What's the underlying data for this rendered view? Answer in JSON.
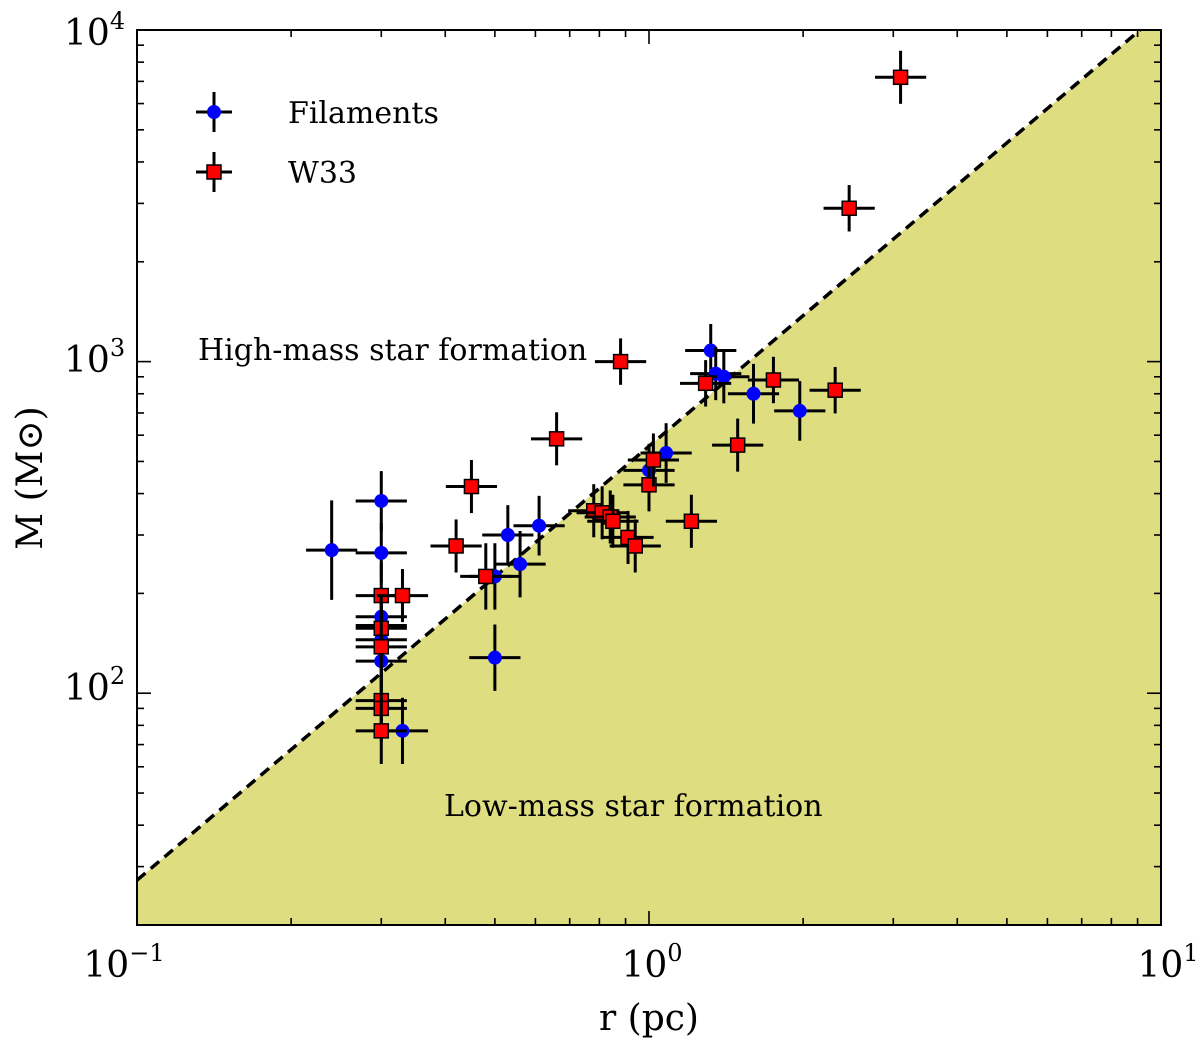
{
  "chart_data": {
    "type": "scatter",
    "xscale": "log",
    "yscale": "log",
    "xlim": [
      0.1,
      10
    ],
    "ylim": [
      20,
      10000
    ],
    "xlabel": "r (pc)",
    "ylabel": "M (M⊙)",
    "x_ticks": [
      {
        "value": 0.1,
        "base": "10",
        "exp": "−1"
      },
      {
        "value": 1,
        "base": "10",
        "exp": "0"
      },
      {
        "value": 10,
        "base": "10",
        "exp": "1"
      }
    ],
    "y_ticks": [
      {
        "value": 100,
        "base": "10",
        "exp": "2"
      },
      {
        "value": 1000,
        "base": "10",
        "exp": "3"
      },
      {
        "value": 10000,
        "base": "10",
        "exp": "4"
      }
    ],
    "threshold": {
      "style": "dashed",
      "color": "#000000",
      "fill_color": "#dedd7f",
      "points": [
        [
          0.1,
          27.3
        ],
        [
          9.1,
          10000
        ]
      ]
    },
    "annotations": {
      "upper": "High-mass star formation",
      "lower": "Low-mass star formation"
    },
    "legend_position": "top-left",
    "series": [
      {
        "name": "Filaments",
        "marker": "circle",
        "color": "#0000ff",
        "points": [
          {
            "x": 0.24,
            "y": 270,
            "yerr": 0.15
          },
          {
            "x": 0.3,
            "y": 380,
            "yerr": 0.09
          },
          {
            "x": 0.3,
            "y": 265,
            "yerr": 0.09
          },
          {
            "x": 0.3,
            "y": 170,
            "yerr": 0.09
          },
          {
            "x": 0.3,
            "y": 160,
            "yerr": 0.09
          },
          {
            "x": 0.3,
            "y": 145,
            "yerr": 0.09
          },
          {
            "x": 0.3,
            "y": 125,
            "yerr": 0.09
          },
          {
            "x": 0.33,
            "y": 77,
            "yerr": 0.1
          },
          {
            "x": 0.5,
            "y": 225,
            "yerr": 0.1
          },
          {
            "x": 0.5,
            "y": 128,
            "yerr": 0.1
          },
          {
            "x": 0.53,
            "y": 300,
            "yerr": 0.09
          },
          {
            "x": 0.56,
            "y": 245,
            "yerr": 0.1
          },
          {
            "x": 0.61,
            "y": 320,
            "yerr": 0.09
          },
          {
            "x": 1.0,
            "y": 470,
            "yerr": 0.08
          },
          {
            "x": 1.08,
            "y": 530,
            "yerr": 0.09
          },
          {
            "x": 1.32,
            "y": 1080,
            "yerr": 0.08
          },
          {
            "x": 1.35,
            "y": 920,
            "yerr": 0.08
          },
          {
            "x": 1.4,
            "y": 900,
            "yerr": 0.08
          },
          {
            "x": 1.6,
            "y": 800,
            "yerr": 0.09
          },
          {
            "x": 1.97,
            "y": 710,
            "yerr": 0.09
          }
        ]
      },
      {
        "name": "W33",
        "marker": "square",
        "color": "#ff0000",
        "points": [
          {
            "x": 0.3,
            "y": 197,
            "yerr": 0.1
          },
          {
            "x": 0.3,
            "y": 157,
            "yerr": 0.1
          },
          {
            "x": 0.3,
            "y": 138,
            "yerr": 0.1
          },
          {
            "x": 0.3,
            "y": 95,
            "yerr": 0.1
          },
          {
            "x": 0.3,
            "y": 90,
            "yerr": 0.1
          },
          {
            "x": 0.3,
            "y": 77,
            "yerr": 0.1
          },
          {
            "x": 0.33,
            "y": 197,
            "yerr": 0.08
          },
          {
            "x": 0.42,
            "y": 278,
            "yerr": 0.08
          },
          {
            "x": 0.45,
            "y": 420,
            "yerr": 0.08
          },
          {
            "x": 0.48,
            "y": 225,
            "yerr": 0.1
          },
          {
            "x": 0.66,
            "y": 585,
            "yerr": 0.08
          },
          {
            "x": 0.78,
            "y": 355,
            "yerr": 0.08
          },
          {
            "x": 0.81,
            "y": 350,
            "yerr": 0.08
          },
          {
            "x": 0.84,
            "y": 340,
            "yerr": 0.08
          },
          {
            "x": 0.85,
            "y": 330,
            "yerr": 0.08
          },
          {
            "x": 0.88,
            "y": 1000,
            "yerr": 0.07
          },
          {
            "x": 0.91,
            "y": 295,
            "yerr": 0.08
          },
          {
            "x": 0.94,
            "y": 278,
            "yerr": 0.08
          },
          {
            "x": 1.0,
            "y": 425,
            "yerr": 0.08
          },
          {
            "x": 1.02,
            "y": 505,
            "yerr": 0.08
          },
          {
            "x": 1.21,
            "y": 330,
            "yerr": 0.08
          },
          {
            "x": 1.29,
            "y": 860,
            "yerr": 0.07
          },
          {
            "x": 1.49,
            "y": 560,
            "yerr": 0.08
          },
          {
            "x": 1.75,
            "y": 880,
            "yerr": 0.07
          },
          {
            "x": 2.31,
            "y": 820,
            "yerr": 0.07
          },
          {
            "x": 2.46,
            "y": 2900,
            "yerr": 0.07
          },
          {
            "x": 3.1,
            "y": 7200,
            "yerr": 0.08
          }
        ]
      }
    ]
  }
}
